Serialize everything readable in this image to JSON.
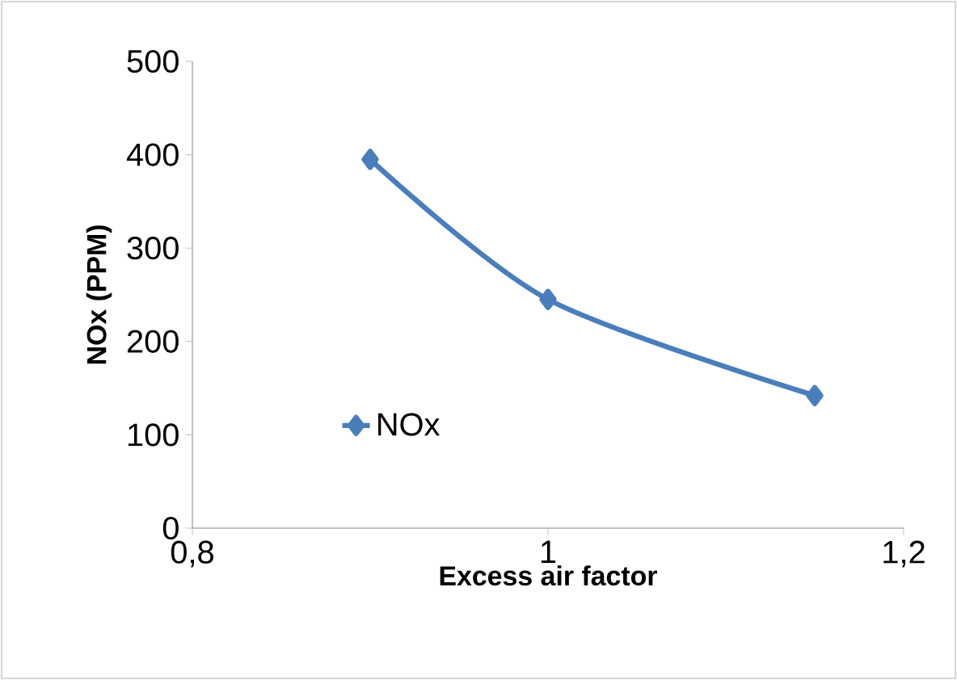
{
  "chart_data": {
    "type": "line",
    "xlabel": "Excess air factor",
    "ylabel": "NOx (PPM)",
    "x": [
      0.9,
      1.0,
      1.15
    ],
    "series": [
      {
        "name": "NOx",
        "color": "#4a7ebb",
        "values": [
          395,
          245,
          142
        ]
      }
    ],
    "xlim": [
      0.8,
      1.2
    ],
    "xticks": [
      {
        "value": 0.8,
        "label": "0,8"
      },
      {
        "value": 1,
        "label": "1"
      },
      {
        "value": 1.2,
        "label": "1,2"
      }
    ],
    "ylim": [
      0,
      500
    ],
    "yticks": [
      0,
      100,
      200,
      300,
      400,
      500
    ],
    "legend": "left",
    "marker": "diamond",
    "line_style": "solid"
  }
}
